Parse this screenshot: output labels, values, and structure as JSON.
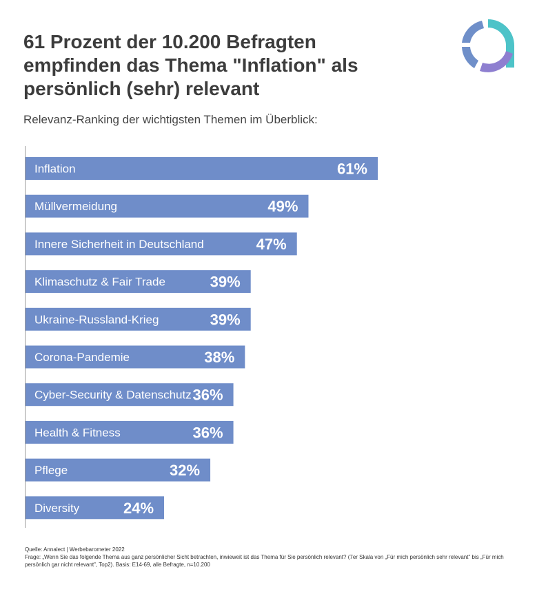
{
  "header": {
    "title": "61 Prozent der 10.200 Befragten empfinden das Thema \"Inflation\" als persönlich (sehr) relevant",
    "subtitle": "Relevanz-Ranking der wichtigsten Themen im Überblick:"
  },
  "logo": {
    "icon": "annalect-ring-logo-icon",
    "colors": [
      "#4dc3c8",
      "#8e7fd0",
      "#6f8fc9"
    ]
  },
  "chart_data": {
    "type": "bar",
    "orientation": "horizontal",
    "title": "",
    "xlabel": "",
    "ylabel": "",
    "xlim": [
      0,
      100
    ],
    "grid": false,
    "bar_color": "#6f8dc9",
    "categories": [
      "Inflation",
      "Müllvermeidung",
      "Innere Sicherheit in Deutschland",
      "Klimaschutz & Fair Trade",
      "Ukraine-Russland-Krieg",
      "Corona-Pandemie",
      "Cyber-Security & Datenschutz",
      "Health & Fitness",
      "Pflege",
      "Diversity"
    ],
    "values": [
      61,
      49,
      47,
      39,
      39,
      38,
      36,
      36,
      32,
      24
    ],
    "value_labels": [
      "61%",
      "49%",
      "47%",
      "39%",
      "39%",
      "38%",
      "36%",
      "36%",
      "32%",
      "24%"
    ]
  },
  "footer": {
    "source": "Quelle: Annalect | Werbebarometer 2022",
    "question": "Frage: „Wenn Sie das folgende Thema aus ganz persönlicher Sicht betrachten, inwieweit ist das Thema für Sie persönlich relevant?  (7er Skala von „Für mich persönlich sehr relevant\" bis „Für mich persönlich gar nicht relevant\", Top2). Basis: E14-69, alle Befragte, n=10.200"
  }
}
